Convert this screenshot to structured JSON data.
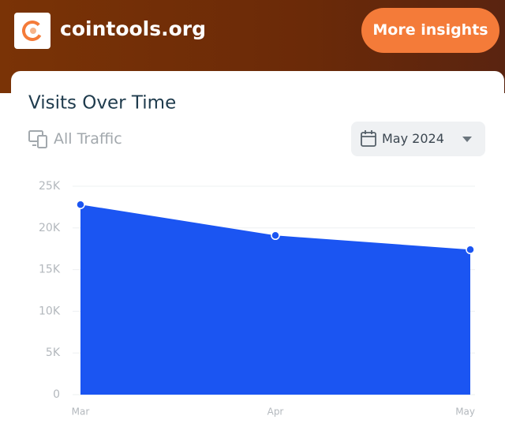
{
  "header": {
    "site": "cointools.org",
    "button": "More insights"
  },
  "card": {
    "filter": "All Traffic",
    "date": "May 2024"
  },
  "chart_data": {
    "type": "area",
    "title": "Visits Over Time",
    "categories": [
      "Mar",
      "Apr",
      "May"
    ],
    "values": [
      22800,
      19100,
      17400
    ],
    "color": "#1b55f2",
    "ylim": [
      0,
      25000
    ],
    "yticks": [
      0,
      {
        "value": 5000,
        "label": "5K"
      },
      {
        "value": 10000,
        "label": "10K"
      },
      {
        "value": 15000,
        "label": "15K"
      },
      {
        "value": 20000,
        "label": "20K"
      },
      {
        "value": 25000,
        "label": "25K"
      }
    ],
    "grid": true
  }
}
